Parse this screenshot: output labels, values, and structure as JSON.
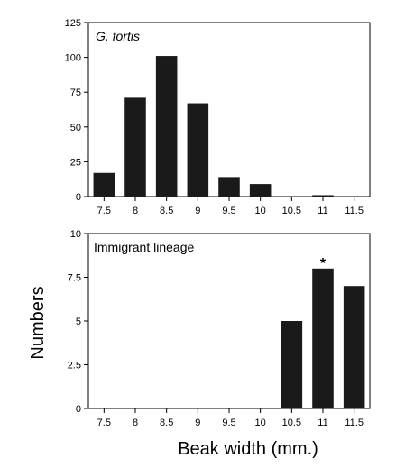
{
  "chart_data": [
    {
      "type": "bar",
      "title": "G. fortis",
      "title_italic": true,
      "categories": [
        "7.5",
        "8",
        "8.5",
        "9",
        "9.5",
        "10",
        "10.5",
        "11",
        "11.5"
      ],
      "values": [
        17,
        71,
        101,
        67,
        14,
        9,
        0,
        1,
        0
      ],
      "ylim": [
        0,
        125
      ],
      "yticks": [
        "0",
        "25",
        "50",
        "75",
        "100",
        "125"
      ],
      "bar_color": "#1a1a1a",
      "grid": false
    },
    {
      "type": "bar",
      "title": "Immigrant lineage",
      "title_italic": false,
      "categories": [
        "7.5",
        "8",
        "8.5",
        "9",
        "9.5",
        "10",
        "10.5",
        "11",
        "11.5"
      ],
      "values": [
        0,
        0,
        0,
        0,
        0,
        0,
        5,
        8,
        7
      ],
      "ylim": [
        0,
        10
      ],
      "yticks": [
        "0",
        "2.5",
        "5",
        "7.5",
        "10"
      ],
      "annotation": {
        "category": "11",
        "text": "*"
      },
      "bar_color": "#1a1a1a",
      "grid": false
    }
  ],
  "ylabel": "Numbers",
  "xlabel": "Beak width (mm.)"
}
